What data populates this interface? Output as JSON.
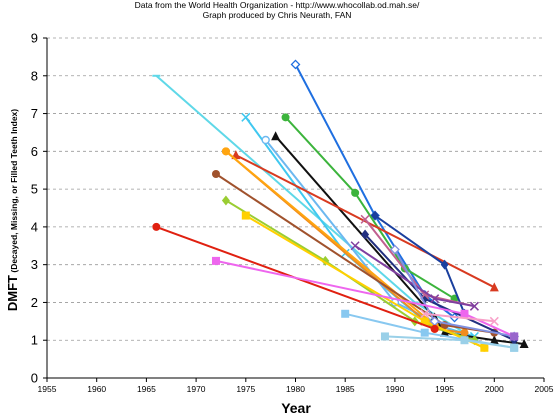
{
  "header": {
    "line1": "Data from the World Health Organization - http://www.whocollab.od.mah.se/",
    "line2": "Graph produced by Chris Neurath, FAN"
  },
  "chart_data": {
    "type": "line",
    "title": "",
    "xlabel": "Year",
    "ylabel": "DMFT (Decayed, Missing, or Filled Teeth Index)",
    "xlim": [
      1955,
      2005
    ],
    "ylim": [
      0,
      9
    ],
    "x_ticks": [
      1955,
      1960,
      1965,
      1970,
      1975,
      1980,
      1985,
      1990,
      1995,
      2000,
      2005
    ],
    "y_ticks": [
      0,
      1,
      2,
      3,
      4,
      5,
      6,
      7,
      8,
      9
    ],
    "grid": "horizontal dashed",
    "legend": "none",
    "series": [
      {
        "color": "#1F6FE0",
        "marker": "diamond-open",
        "points": [
          [
            1980,
            8.3
          ],
          [
            1988,
            4.3
          ],
          [
            1993,
            2.2
          ],
          [
            1996,
            1.6
          ]
        ]
      },
      {
        "color": "#5FD8E8",
        "marker": "dash",
        "points": [
          [
            1966,
            8.0
          ],
          [
            1992,
            2.0
          ],
          [
            1997,
            1.2
          ]
        ]
      },
      {
        "color": "#3CB43C",
        "marker": "circle",
        "points": [
          [
            1979,
            6.9
          ],
          [
            1986,
            4.9
          ],
          [
            1991,
            2.9
          ],
          [
            1996,
            2.1
          ]
        ]
      },
      {
        "color": "#40C8F0",
        "marker": "x",
        "points": [
          [
            1975,
            6.9
          ],
          [
            1985,
            3.3
          ],
          [
            1993,
            1.5
          ],
          [
            1998,
            1.1
          ]
        ]
      },
      {
        "color": "#6CB8F0",
        "marker": "circle-open",
        "points": [
          [
            1977,
            6.3
          ],
          [
            1990,
            2.0
          ],
          [
            1997,
            1.1
          ]
        ]
      },
      {
        "color": "#111111",
        "marker": "triangle",
        "points": [
          [
            1978,
            6.4
          ],
          [
            1994,
            1.6
          ],
          [
            1995,
            1.2
          ],
          [
            2000,
            1.0
          ],
          [
            2003,
            0.9
          ]
        ]
      },
      {
        "color": "#D83A20",
        "marker": "triangle",
        "points": [
          [
            1974,
            5.9
          ],
          [
            2000,
            2.4
          ]
        ]
      },
      {
        "color": "#F08C1E",
        "marker": "circle",
        "points": [
          [
            1973,
            6.0
          ],
          [
            1994,
            1.3
          ],
          [
            1997,
            1.2
          ]
        ]
      },
      {
        "color": "#FFA510",
        "marker": "circle",
        "points": [
          [
            1973,
            6.0
          ],
          [
            1994,
            1.4
          ],
          [
            1999,
            0.8
          ]
        ]
      },
      {
        "color": "#A0522D",
        "marker": "circle",
        "points": [
          [
            1972,
            5.4
          ],
          [
            1995,
            1.4
          ],
          [
            2000,
            1.2
          ]
        ]
      },
      {
        "color": "#9ACD32",
        "marker": "diamond",
        "points": [
          [
            1973,
            4.7
          ],
          [
            1983,
            3.1
          ],
          [
            1992,
            1.5
          ],
          [
            1998,
            1.0
          ]
        ]
      },
      {
        "color": "#FFD000",
        "marker": "square",
        "points": [
          [
            1975,
            4.3
          ],
          [
            1993,
            1.5
          ],
          [
            1999,
            0.8
          ]
        ]
      },
      {
        "color": "#1A3F9E",
        "marker": "diamond",
        "points": [
          [
            1988,
            4.3
          ],
          [
            1995,
            3.0
          ],
          [
            1997,
            1.7
          ]
        ]
      },
      {
        "color": "#223080",
        "marker": "diamond",
        "points": [
          [
            1987,
            3.8
          ],
          [
            1993,
            2.1
          ],
          [
            2002,
            1.0
          ]
        ]
      },
      {
        "color": "#C06090",
        "marker": "x",
        "points": [
          [
            1987,
            4.2
          ],
          [
            1993,
            2.2
          ],
          [
            1998,
            1.9
          ]
        ]
      },
      {
        "color": "#7F3F9F",
        "marker": "x",
        "points": [
          [
            1986,
            3.5
          ],
          [
            1994,
            2.1
          ],
          [
            1998,
            1.9
          ]
        ]
      },
      {
        "color": "#8090E0",
        "marker": "diamond-open",
        "points": [
          [
            1990,
            3.4
          ],
          [
            1994,
            1.5
          ],
          [
            2002,
            1.1
          ]
        ]
      },
      {
        "color": "#E02010",
        "marker": "circle",
        "points": [
          [
            1966,
            4.0
          ],
          [
            1994,
            1.3
          ]
        ]
      },
      {
        "color": "#EE66EE",
        "marker": "square",
        "points": [
          [
            1972,
            3.1
          ],
          [
            1997,
            1.7
          ],
          [
            2002,
            1.1
          ]
        ]
      },
      {
        "color": "#F8A0C8",
        "marker": "x",
        "points": [
          [
            1993,
            1.7
          ],
          [
            2000,
            1.5
          ]
        ]
      },
      {
        "color": "#88C8F0",
        "marker": "square",
        "points": [
          [
            1985,
            1.7
          ],
          [
            1993,
            1.2
          ],
          [
            2002,
            0.8
          ]
        ]
      },
      {
        "color": "#9AD0E8",
        "marker": "square",
        "points": [
          [
            1989,
            1.1
          ],
          [
            1997,
            1.0
          ],
          [
            2002,
            0.8
          ]
        ]
      },
      {
        "color": "#9966CC",
        "marker": "square",
        "points": [
          [
            2002,
            1.1
          ]
        ]
      }
    ]
  }
}
